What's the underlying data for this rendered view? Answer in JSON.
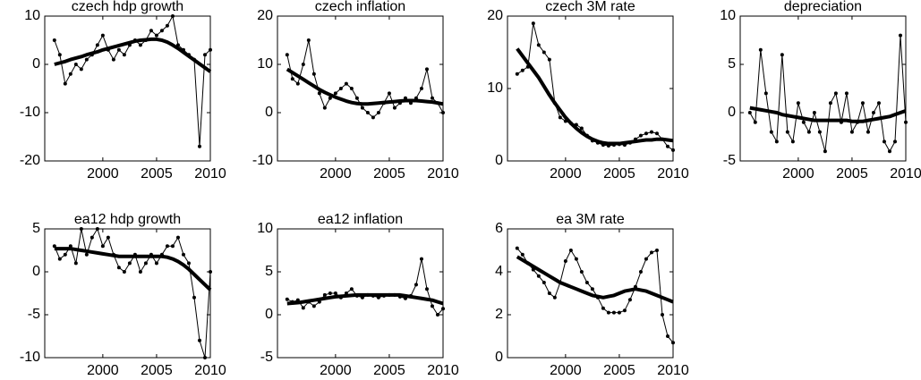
{
  "chart_data": [
    {
      "type": "line",
      "title": "czech hdp growth",
      "x": [
        1995.5,
        1996,
        1996.5,
        1997,
        1997.5,
        1998,
        1998.5,
        1999,
        1999.5,
        2000,
        2000.5,
        2001,
        2001.5,
        2002,
        2002.5,
        2003,
        2003.5,
        2004,
        2004.5,
        2005,
        2005.5,
        2006,
        2006.5,
        2007,
        2007.5,
        2008,
        2008.5,
        2009,
        2009.5,
        2010
      ],
      "series": [
        {
          "color": "#000000",
          "line_width": 1,
          "markers": true,
          "values": [
            5,
            2,
            -4,
            -2,
            0,
            -1,
            1,
            2,
            4,
            6,
            3,
            1,
            3,
            2,
            4,
            5,
            4,
            5,
            7,
            6,
            7,
            8,
            10,
            4,
            3,
            2,
            1,
            -17,
            2,
            3
          ]
        },
        {
          "color": "#000000",
          "line_width": 4,
          "markers": false,
          "values": [
            0,
            0.3,
            0.6,
            1,
            1.3,
            1.6,
            2,
            2.3,
            2.6,
            3,
            3.3,
            3.6,
            3.9,
            4.2,
            4.5,
            4.8,
            5,
            5.1,
            5.2,
            5.2,
            5,
            4.6,
            4,
            3.3,
            2.5,
            1.7,
            0.9,
            0.1,
            -0.7,
            -1.5
          ]
        }
      ],
      "xlim": [
        1994.6,
        2010
      ],
      "xticks": [
        2000,
        2005,
        2010
      ],
      "ylim": [
        -20,
        10
      ],
      "yticks": [
        -20,
        -10,
        0,
        10
      ]
    },
    {
      "type": "line",
      "title": "czech inflation",
      "x": [
        1995.5,
        1996,
        1996.5,
        1997,
        1997.5,
        1998,
        1998.5,
        1999,
        1999.5,
        2000,
        2000.5,
        2001,
        2001.5,
        2002,
        2002.5,
        2003,
        2003.5,
        2004,
        2004.5,
        2005,
        2005.5,
        2006,
        2006.5,
        2007,
        2007.5,
        2008,
        2008.5,
        2009,
        2009.5,
        2010
      ],
      "series": [
        {
          "color": "#000000",
          "line_width": 1,
          "markers": true,
          "values": [
            12,
            7,
            6,
            10,
            15,
            8,
            4,
            1,
            3,
            4,
            5,
            6,
            5,
            3,
            1,
            0,
            -1,
            0,
            2,
            4,
            1,
            2,
            3,
            2,
            3,
            5,
            9,
            3,
            2,
            0
          ]
        },
        {
          "color": "#000000",
          "line_width": 4,
          "markers": false,
          "values": [
            9,
            8.3,
            7.6,
            6.9,
            6.2,
            5.5,
            4.8,
            4.2,
            3.7,
            3.2,
            2.8,
            2.4,
            2.1,
            1.9,
            1.8,
            1.8,
            1.9,
            2,
            2.1,
            2.2,
            2.3,
            2.4,
            2.5,
            2.5,
            2.5,
            2.4,
            2.3,
            2.2,
            2,
            1.8
          ]
        }
      ],
      "xlim": [
        1994.6,
        2010
      ],
      "xticks": [
        2000,
        2005,
        2010
      ],
      "ylim": [
        -10,
        20
      ],
      "yticks": [
        -10,
        0,
        10,
        20
      ]
    },
    {
      "type": "line",
      "title": "czech 3M rate",
      "x": [
        1995.5,
        1996,
        1996.5,
        1997,
        1997.5,
        1998,
        1998.5,
        1999,
        1999.5,
        2000,
        2000.5,
        2001,
        2001.5,
        2002,
        2002.5,
        2003,
        2003.5,
        2004,
        2004.5,
        2005,
        2005.5,
        2006,
        2006.5,
        2007,
        2007.5,
        2008,
        2008.5,
        2009,
        2009.5,
        2010
      ],
      "series": [
        {
          "color": "#000000",
          "line_width": 1,
          "markers": true,
          "values": [
            12,
            12.5,
            13,
            19,
            16,
            15,
            14,
            8,
            6,
            5.5,
            5.2,
            5,
            4.5,
            3.5,
            2.8,
            2.5,
            2.2,
            2.1,
            2.2,
            2.3,
            2.2,
            2.5,
            3,
            3.5,
            3.8,
            4,
            3.8,
            3,
            2,
            1.5
          ]
        },
        {
          "color": "#000000",
          "line_width": 4,
          "markers": false,
          "values": [
            15.5,
            14.5,
            13.5,
            12.5,
            11.5,
            10.3,
            9.1,
            8,
            7,
            6,
            5.2,
            4.5,
            3.9,
            3.4,
            3,
            2.7,
            2.5,
            2.4,
            2.4,
            2.4,
            2.5,
            2.6,
            2.7,
            2.8,
            2.9,
            2.9,
            3,
            3,
            2.9,
            2.8
          ]
        }
      ],
      "xlim": [
        1994.6,
        2010
      ],
      "xticks": [
        2000,
        2005,
        2010
      ],
      "ylim": [
        0,
        20
      ],
      "yticks": [
        0,
        10,
        20
      ]
    },
    {
      "type": "line",
      "title": "depreciation",
      "x": [
        1995.5,
        1996,
        1996.5,
        1997,
        1997.5,
        1998,
        1998.5,
        1999,
        1999.5,
        2000,
        2000.5,
        2001,
        2001.5,
        2002,
        2002.5,
        2003,
        2003.5,
        2004,
        2004.5,
        2005,
        2005.5,
        2006,
        2006.5,
        2007,
        2007.5,
        2008,
        2008.5,
        2009,
        2009.5,
        2010
      ],
      "series": [
        {
          "color": "#000000",
          "line_width": 1,
          "markers": true,
          "values": [
            0,
            -1,
            6.5,
            2,
            -2,
            -3,
            6,
            -2,
            -3,
            1,
            -1,
            -2,
            0,
            -2,
            -4,
            1,
            2,
            -1,
            2,
            -2,
            -1,
            1,
            -2,
            0,
            1,
            -3,
            -4,
            -3,
            8,
            -1
          ]
        },
        {
          "color": "#000000",
          "line_width": 4,
          "markers": false,
          "values": [
            0.5,
            0.4,
            0.3,
            0.2,
            0.1,
            0,
            -0.2,
            -0.3,
            -0.4,
            -0.5,
            -0.6,
            -0.7,
            -0.8,
            -0.8,
            -0.8,
            -0.8,
            -0.8,
            -0.8,
            -0.8,
            -0.9,
            -0.9,
            -0.9,
            -0.8,
            -0.7,
            -0.6,
            -0.5,
            -0.4,
            -0.2,
            0,
            0.2
          ]
        }
      ],
      "xlim": [
        1994.6,
        2010
      ],
      "xticks": [
        2000,
        2005,
        2010
      ],
      "ylim": [
        -5,
        10
      ],
      "yticks": [
        -5,
        0,
        5,
        10
      ]
    },
    {
      "type": "line",
      "title": "ea12 hdp growth",
      "x": [
        1995.5,
        1996,
        1996.5,
        1997,
        1997.5,
        1998,
        1998.5,
        1999,
        1999.5,
        2000,
        2000.5,
        2001,
        2001.5,
        2002,
        2002.5,
        2003,
        2003.5,
        2004,
        2004.5,
        2005,
        2005.5,
        2006,
        2006.5,
        2007,
        2007.5,
        2008,
        2008.5,
        2009,
        2009.5,
        2010
      ],
      "series": [
        {
          "color": "#000000",
          "line_width": 1,
          "markers": true,
          "values": [
            3,
            1.5,
            2,
            3,
            1,
            5,
            2,
            4,
            5,
            3,
            4,
            2,
            0.5,
            0,
            1,
            2,
            0,
            1,
            2,
            1,
            2,
            3,
            3,
            4,
            2,
            1,
            -3,
            -8,
            -10,
            0
          ]
        },
        {
          "color": "#000000",
          "line_width": 4,
          "markers": false,
          "values": [
            2.7,
            2.7,
            2.7,
            2.7,
            2.6,
            2.5,
            2.4,
            2.3,
            2.2,
            2.1,
            2,
            1.9,
            1.8,
            1.8,
            1.8,
            1.8,
            1.8,
            1.8,
            1.8,
            1.8,
            1.8,
            1.7,
            1.5,
            1.2,
            0.8,
            0.3,
            -0.3,
            -0.9,
            -1.5,
            -2.1
          ]
        }
      ],
      "xlim": [
        1994.6,
        2010
      ],
      "xticks": [
        2000,
        2005,
        2010
      ],
      "ylim": [
        -10,
        5
      ],
      "yticks": [
        -10,
        -5,
        0,
        5
      ]
    },
    {
      "type": "line",
      "title": "ea12 inflation",
      "x": [
        1995.5,
        1996,
        1996.5,
        1997,
        1997.5,
        1998,
        1998.5,
        1999,
        1999.5,
        2000,
        2000.5,
        2001,
        2001.5,
        2002,
        2002.5,
        2003,
        2003.5,
        2004,
        2004.5,
        2005,
        2005.5,
        2006,
        2006.5,
        2007,
        2007.5,
        2008,
        2008.5,
        2009,
        2009.5,
        2010
      ],
      "series": [
        {
          "color": "#000000",
          "line_width": 1,
          "markers": true,
          "values": [
            1.8,
            1.5,
            1.7,
            0.8,
            1.5,
            1,
            1.5,
            2.3,
            2.5,
            2.5,
            2,
            2.5,
            3,
            2.2,
            2,
            2.3,
            2.2,
            2,
            2.2,
            2.3,
            2.3,
            2.1,
            1.9,
            2.2,
            3.5,
            6.5,
            3,
            1,
            0,
            0.7
          ]
        },
        {
          "color": "#000000",
          "line_width": 4,
          "markers": false,
          "values": [
            1.3,
            1.35,
            1.4,
            1.5,
            1.6,
            1.7,
            1.8,
            1.9,
            2,
            2.1,
            2.15,
            2.2,
            2.25,
            2.3,
            2.3,
            2.3,
            2.3,
            2.3,
            2.3,
            2.3,
            2.3,
            2.3,
            2.2,
            2.1,
            2,
            1.9,
            1.8,
            1.7,
            1.5,
            1.3
          ]
        }
      ],
      "xlim": [
        1994.6,
        2010
      ],
      "xticks": [
        2000,
        2005,
        2010
      ],
      "ylim": [
        -5,
        10
      ],
      "yticks": [
        -5,
        0,
        5,
        10
      ]
    },
    {
      "type": "line",
      "title": "ea 3M rate",
      "x": [
        1995.5,
        1996,
        1996.5,
        1997,
        1997.5,
        1998,
        1998.5,
        1999,
        1999.5,
        2000,
        2000.5,
        2001,
        2001.5,
        2002,
        2002.5,
        2003,
        2003.5,
        2004,
        2004.5,
        2005,
        2005.5,
        2006,
        2006.5,
        2007,
        2007.5,
        2008,
        2008.5,
        2009,
        2009.5,
        2010
      ],
      "series": [
        {
          "color": "#000000",
          "line_width": 1,
          "markers": true,
          "values": [
            5.1,
            4.8,
            4.4,
            4.1,
            3.8,
            3.5,
            3,
            2.8,
            3.5,
            4.5,
            5,
            4.6,
            4,
            3.5,
            3.2,
            2.8,
            2.3,
            2.1,
            2.1,
            2.1,
            2.2,
            2.7,
            3.3,
            4,
            4.6,
            4.9,
            5,
            2,
            1,
            0.7
          ]
        },
        {
          "color": "#000000",
          "line_width": 4,
          "markers": false,
          "values": [
            4.7,
            4.55,
            4.4,
            4.25,
            4.1,
            3.95,
            3.8,
            3.65,
            3.5,
            3.4,
            3.3,
            3.2,
            3.1,
            3,
            2.9,
            2.85,
            2.8,
            2.85,
            2.9,
            3,
            3.1,
            3.15,
            3.2,
            3.15,
            3.1,
            3,
            2.9,
            2.8,
            2.7,
            2.6
          ]
        }
      ],
      "xlim": [
        1994.6,
        2010
      ],
      "xticks": [
        2000,
        2005,
        2010
      ],
      "ylim": [
        0,
        6
      ],
      "yticks": [
        0,
        2,
        4,
        6
      ]
    }
  ]
}
